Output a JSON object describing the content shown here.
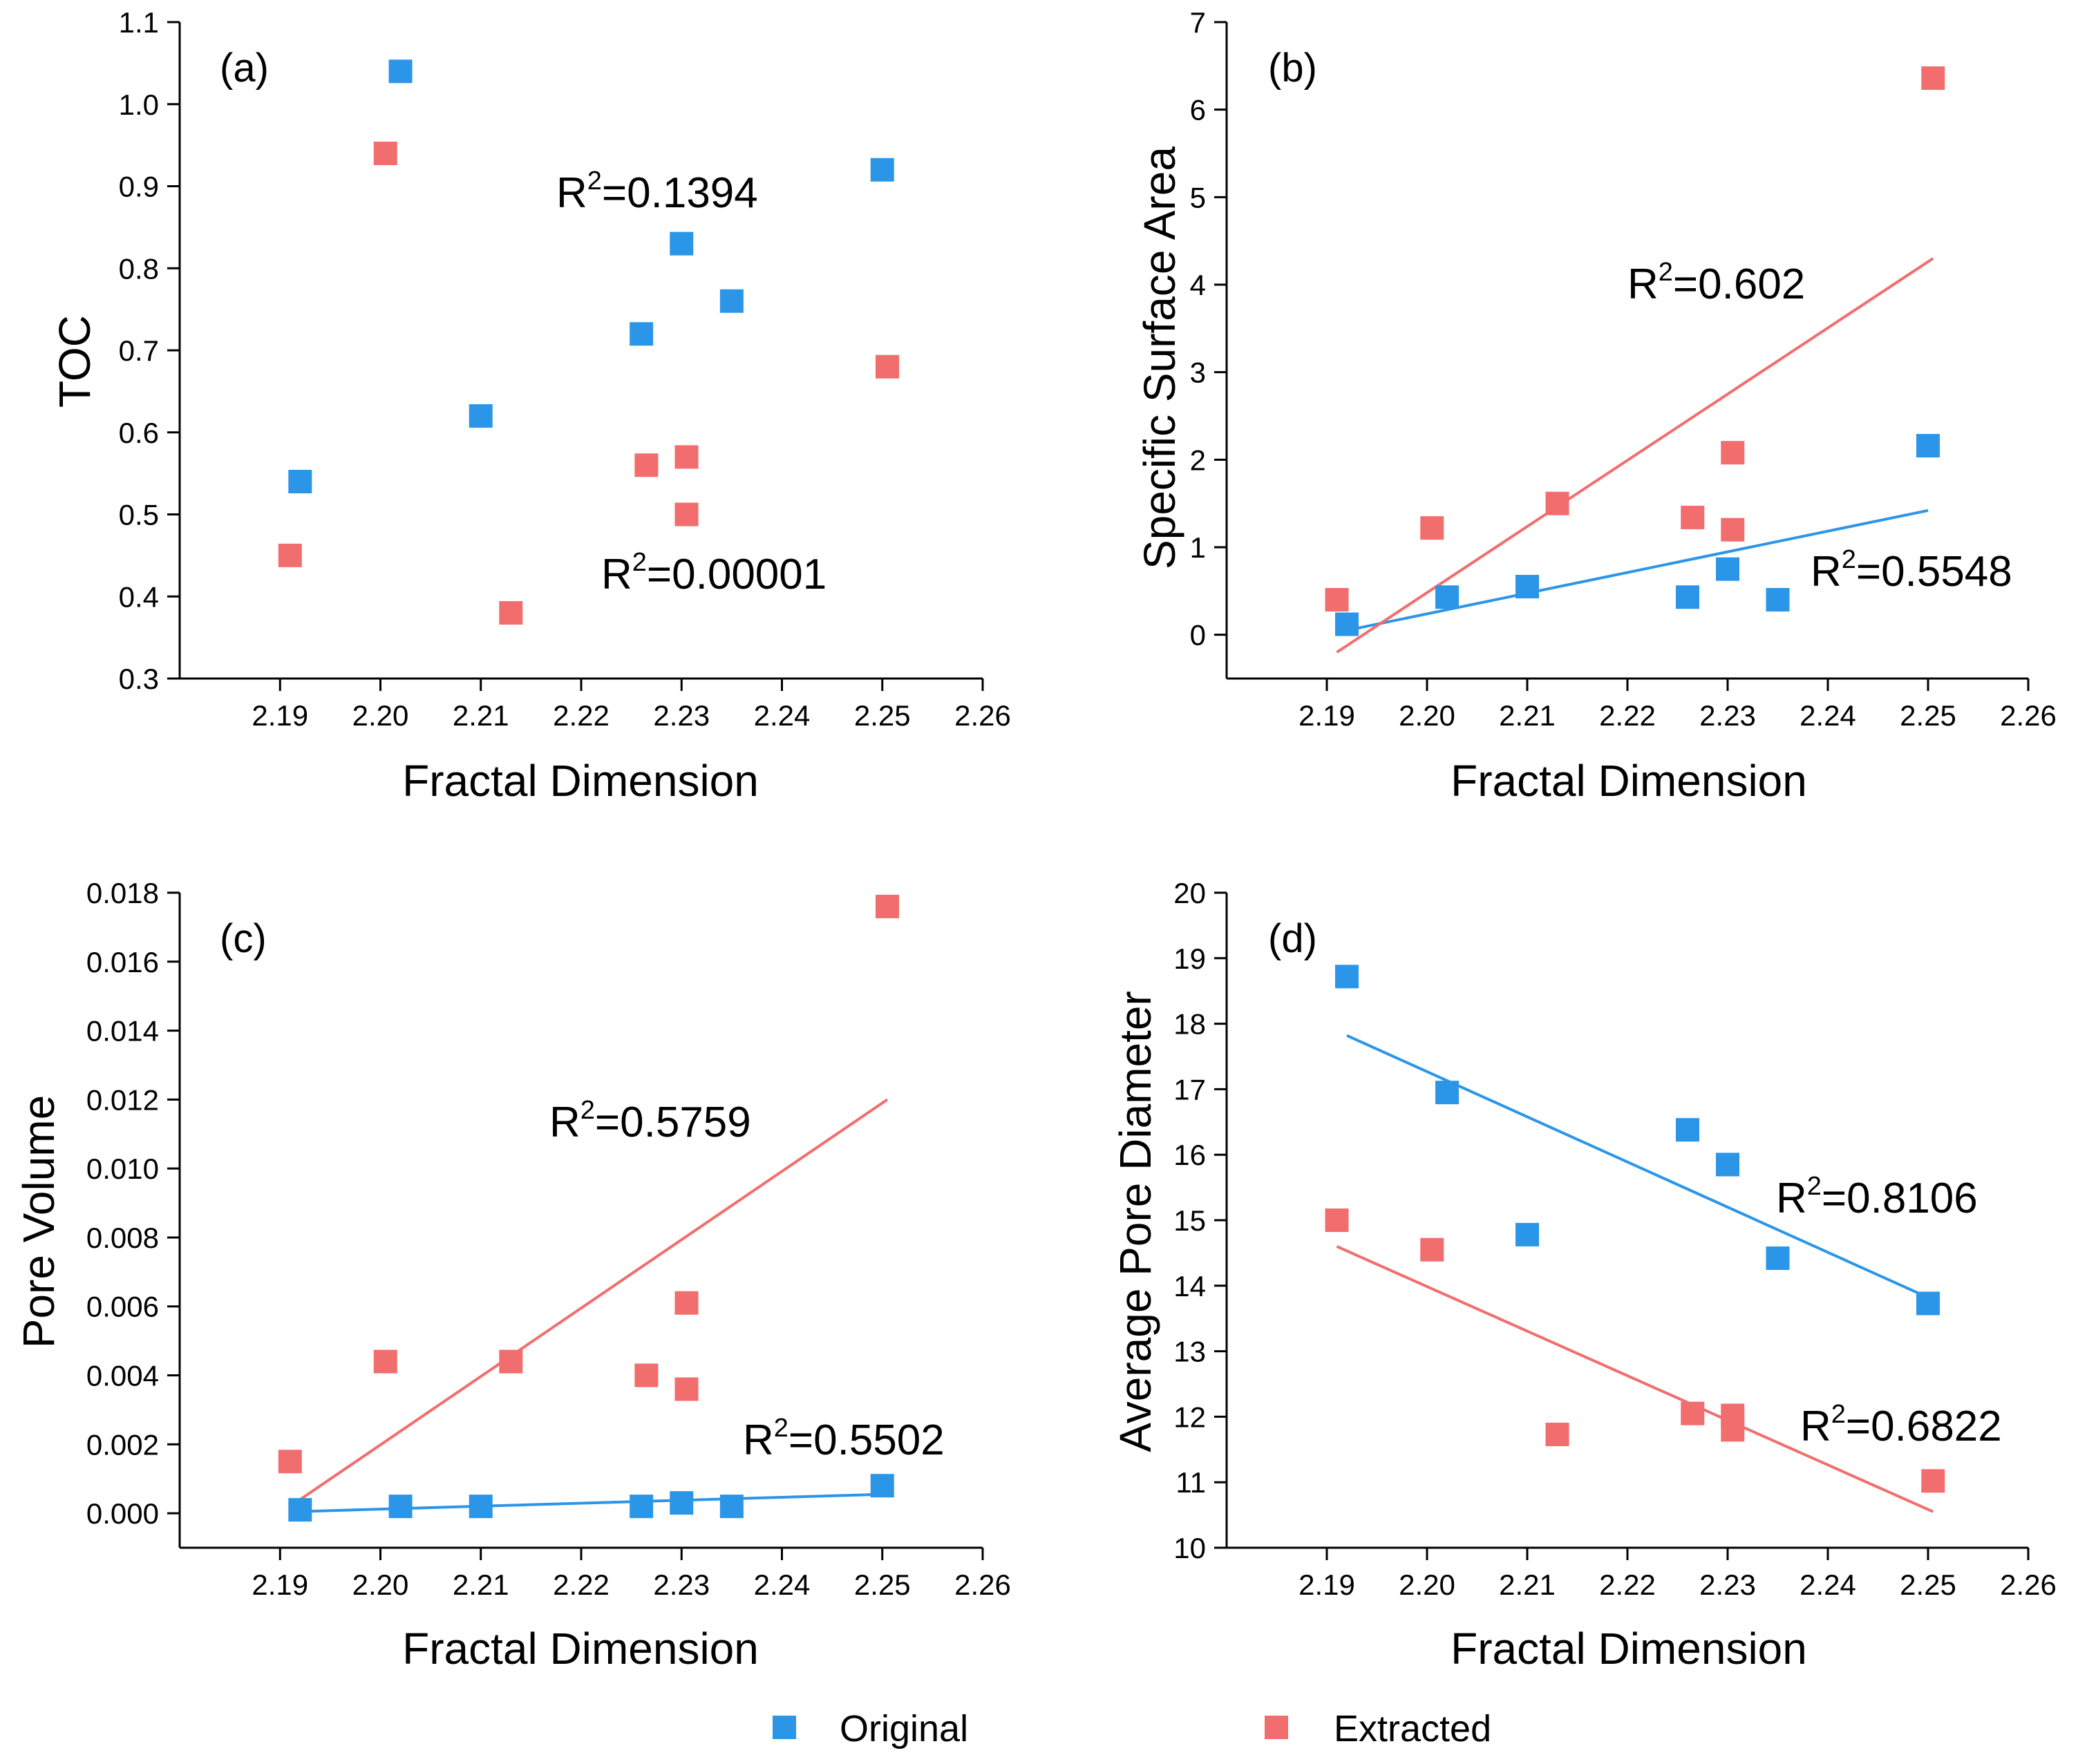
{
  "colors": {
    "original": "#2b95e8",
    "extracted": "#f26d6d",
    "axis": "#000000"
  },
  "legend": {
    "original": "Original",
    "extracted": "Extracted"
  },
  "chart_data": [
    {
      "id": "a",
      "type": "scatter",
      "panel_label": "(a)",
      "xlabel": "Fractal Dimension",
      "ylabel": "TOC",
      "xlim": [
        2.18,
        2.26
      ],
      "ylim": [
        0.3,
        1.1
      ],
      "xticks": [
        "2.19",
        "2.20",
        "2.21",
        "2.22",
        "2.23",
        "2.24",
        "2.25",
        "2.26"
      ],
      "yticks": [
        "0.3",
        "0.4",
        "0.5",
        "0.6",
        "0.7",
        "0.8",
        "0.9",
        "1.0",
        "1.1"
      ],
      "series": [
        {
          "name": "Original",
          "color": "#2b95e8",
          "x": [
            2.192,
            2.202,
            2.21,
            2.226,
            2.23,
            2.235,
            2.25
          ],
          "y": [
            0.54,
            1.04,
            0.62,
            0.72,
            0.83,
            0.76,
            0.92
          ],
          "fit": null,
          "r2": "R2=0.1394",
          "r2_sup": "2",
          "r2_pre": "R",
          "r2_post": "=0.1394"
        },
        {
          "name": "Extracted",
          "color": "#f26d6d",
          "x": [
            2.191,
            2.2005,
            2.213,
            2.2265,
            2.2305,
            2.2305,
            2.2505
          ],
          "y": [
            0.45,
            0.94,
            0.38,
            0.56,
            0.57,
            0.5,
            0.68
          ],
          "fit": null,
          "r2": "R2=0.00001",
          "r2_pre": "R",
          "r2_sup": "2",
          "r2_post": "=0.00001"
        }
      ]
    },
    {
      "id": "b",
      "type": "scatter",
      "panel_label": "(b)",
      "xlabel": "Fractal Dimension",
      "ylabel": "Specific Surface Area",
      "xlim": [
        2.18,
        2.26
      ],
      "ylim": [
        -0.5,
        7
      ],
      "xticks": [
        "2.19",
        "2.20",
        "2.21",
        "2.22",
        "2.23",
        "2.24",
        "2.25",
        "2.26"
      ],
      "yticks": [
        "0",
        "1",
        "2",
        "3",
        "4",
        "5",
        "6",
        "7"
      ],
      "series": [
        {
          "name": "Original",
          "color": "#2b95e8",
          "x": [
            2.192,
            2.202,
            2.21,
            2.226,
            2.23,
            2.235,
            2.25
          ],
          "y": [
            0.12,
            0.43,
            0.55,
            0.43,
            0.75,
            0.4,
            2.16
          ],
          "fit": {
            "x": [
              2.192,
              2.25
            ],
            "y": [
              0.05,
              1.42
            ]
          },
          "r2_pre": "R",
          "r2_sup": "2",
          "r2_post": "=0.5548"
        },
        {
          "name": "Extracted",
          "color": "#f26d6d",
          "x": [
            2.191,
            2.2005,
            2.213,
            2.2265,
            2.2305,
            2.2305,
            2.2505
          ],
          "y": [
            0.4,
            1.22,
            1.5,
            1.34,
            2.08,
            1.2,
            6.36
          ],
          "fit": {
            "x": [
              2.191,
              2.2505
            ],
            "y": [
              -0.2,
              4.3
            ]
          },
          "r2_pre": "R",
          "r2_sup": "2",
          "r2_post": "=0.602"
        }
      ]
    },
    {
      "id": "c",
      "type": "scatter",
      "panel_label": "(c)",
      "xlabel": "Fractal Dimension",
      "ylabel": "Pore Volume",
      "xlim": [
        2.18,
        2.26
      ],
      "ylim": [
        -0.001,
        0.018
      ],
      "xticks": [
        "2.19",
        "2.20",
        "2.21",
        "2.22",
        "2.23",
        "2.24",
        "2.25",
        "2.26"
      ],
      "yticks": [
        "0.000",
        "0.002",
        "0.004",
        "0.006",
        "0.008",
        "0.010",
        "0.012",
        "0.014",
        "0.016",
        "0.018"
      ],
      "series": [
        {
          "name": "Original",
          "color": "#2b95e8",
          "x": [
            2.192,
            2.202,
            2.21,
            2.226,
            2.23,
            2.235,
            2.25
          ],
          "y": [
            0.0001,
            0.0002,
            0.0002,
            0.0002,
            0.0003,
            0.0002,
            0.0008
          ],
          "fit": {
            "x": [
              2.192,
              2.25
            ],
            "y": [
              5e-05,
              0.00055
            ]
          },
          "r2_pre": "R",
          "r2_sup": "2",
          "r2_post": "=0.5502"
        },
        {
          "name": "Extracted",
          "color": "#f26d6d",
          "x": [
            2.191,
            2.2005,
            2.213,
            2.2265,
            2.2305,
            2.2305,
            2.2505
          ],
          "y": [
            0.0015,
            0.0044,
            0.0044,
            0.004,
            0.0061,
            0.0036,
            0.0176
          ],
          "fit": {
            "x": [
              2.191,
              2.2505
            ],
            "y": [
              0.0002,
              0.012
            ]
          },
          "r2_pre": "R",
          "r2_sup": "2",
          "r2_post": "=0.5759"
        }
      ]
    },
    {
      "id": "d",
      "type": "scatter",
      "panel_label": "(d)",
      "xlabel": "Fractal Dimension",
      "ylabel": "Average Pore Diameter",
      "xlim": [
        2.18,
        2.26
      ],
      "ylim": [
        10,
        20
      ],
      "xticks": [
        "2.19",
        "2.20",
        "2.21",
        "2.22",
        "2.23",
        "2.24",
        "2.25",
        "2.26"
      ],
      "yticks": [
        "10",
        "11",
        "12",
        "13",
        "14",
        "15",
        "16",
        "17",
        "18",
        "19",
        "20"
      ],
      "series": [
        {
          "name": "Original",
          "color": "#2b95e8",
          "x": [
            2.192,
            2.202,
            2.21,
            2.226,
            2.23,
            2.235,
            2.25
          ],
          "y": [
            18.72,
            16.95,
            14.78,
            16.38,
            15.85,
            14.42,
            13.73
          ],
          "fit": {
            "x": [
              2.192,
              2.25
            ],
            "y": [
              17.82,
              13.82
            ]
          },
          "r2_pre": "R",
          "r2_sup": "2",
          "r2_post": "=0.8106"
        },
        {
          "name": "Extracted",
          "color": "#f26d6d",
          "x": [
            2.191,
            2.2005,
            2.213,
            2.2265,
            2.2305,
            2.2305,
            2.2505
          ],
          "y": [
            15.0,
            14.55,
            11.73,
            12.05,
            12.02,
            11.8,
            11.02
          ],
          "fit": {
            "x": [
              2.191,
              2.2505
            ],
            "y": [
              14.6,
              10.55
            ]
          },
          "r2_pre": "R",
          "r2_sup": "2",
          "r2_post": "=0.6822"
        }
      ]
    }
  ]
}
